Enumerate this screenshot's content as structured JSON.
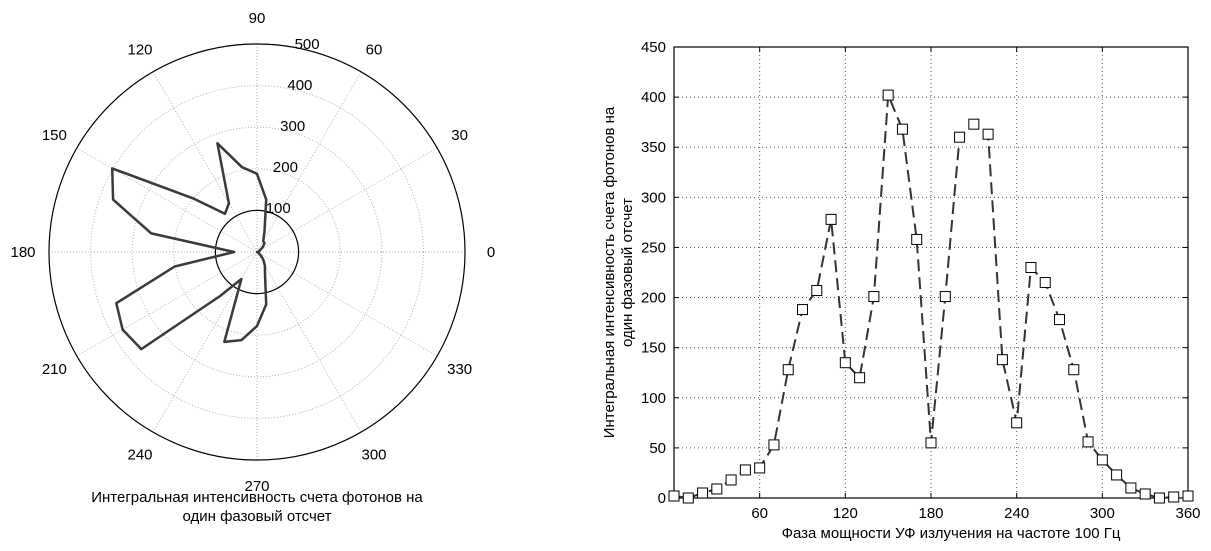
{
  "chart_data": [
    {
      "type": "polar",
      "caption_lines": [
        "Интегральная интенсивность счета фотонов на",
        "один фазовый отсчет"
      ],
      "angle_ticks": [
        "0",
        "30",
        "60",
        "90",
        "120",
        "150",
        "180",
        "210",
        "240",
        "270",
        "300",
        "330"
      ],
      "angle_tick_values": [
        0,
        30,
        60,
        90,
        120,
        150,
        180,
        210,
        240,
        270,
        300,
        330
      ],
      "radial_ticks": [
        "100",
        "200",
        "300",
        "400",
        "500"
      ],
      "radial_tick_values": [
        100,
        200,
        300,
        400,
        500
      ],
      "rmax": 500,
      "grid": true,
      "angles": [
        0,
        10,
        20,
        30,
        40,
        50,
        60,
        70,
        80,
        90,
        100,
        110,
        120,
        130,
        140,
        150,
        160,
        170,
        180,
        190,
        200,
        210,
        220,
        230,
        240,
        250,
        260,
        270,
        280,
        290,
        300,
        310,
        320,
        330,
        340,
        350,
        0
      ],
      "radius": [
        2,
        0,
        5,
        9,
        18,
        28,
        30,
        53,
        128,
        188,
        207,
        278,
        135,
        120,
        201,
        402,
        368,
        258,
        55,
        201,
        360,
        373,
        363,
        138,
        75,
        230,
        215,
        178,
        128,
        56,
        38,
        23,
        10,
        4,
        0,
        1,
        2
      ]
    },
    {
      "type": "line",
      "ylabel_lines": [
        "Интегральная интенсивность счета фотонов на",
        "один фазовый отсчет"
      ],
      "xlabel": "Фаза мощности УФ излучения на частоте 100 Гц",
      "x_ticks": [
        "60",
        "120",
        "180",
        "240",
        "300",
        "360"
      ],
      "x_tick_values": [
        60,
        120,
        180,
        240,
        300,
        360
      ],
      "y_ticks": [
        "0",
        "50",
        "100",
        "150",
        "200",
        "250",
        "300",
        "350",
        "400",
        "450"
      ],
      "y_tick_values": [
        0,
        50,
        100,
        150,
        200,
        250,
        300,
        350,
        400,
        450
      ],
      "xlim": [
        0,
        360
      ],
      "ylim": [
        0,
        450
      ],
      "grid": true,
      "x": [
        0,
        10,
        20,
        30,
        40,
        50,
        60,
        70,
        80,
        90,
        100,
        110,
        120,
        130,
        140,
        150,
        160,
        170,
        180,
        190,
        200,
        210,
        220,
        230,
        240,
        250,
        260,
        270,
        280,
        290,
        300,
        310,
        320,
        330,
        340,
        350,
        360
      ],
      "y": [
        2,
        0,
        5,
        9,
        18,
        28,
        30,
        53,
        128,
        188,
        207,
        278,
        135,
        120,
        201,
        402,
        368,
        258,
        55,
        201,
        360,
        373,
        363,
        138,
        75,
        230,
        215,
        178,
        128,
        56,
        38,
        23,
        10,
        4,
        0,
        1,
        2
      ]
    }
  ]
}
